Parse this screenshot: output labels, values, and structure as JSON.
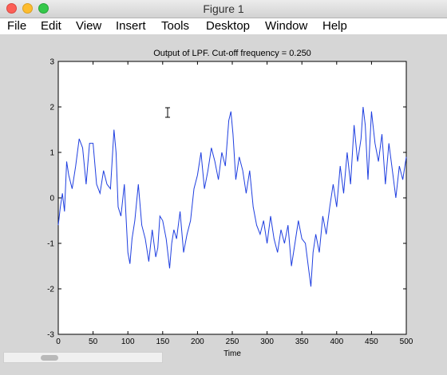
{
  "window": {
    "title": "Figure 1"
  },
  "menu": {
    "items": [
      "File",
      "Edit",
      "View",
      "Insert",
      "Tools",
      "Desktop",
      "Window",
      "Help"
    ]
  },
  "colors": {
    "line": "#1f3fe0",
    "axes_bg": "#ffffff",
    "figure_bg": "#d6d6d6"
  },
  "chart_data": {
    "type": "line",
    "title": "Output of LPF. Cut-off frequency = 0.250",
    "xlabel": "Time",
    "ylabel": "",
    "xlim": [
      0,
      500
    ],
    "ylim": [
      -3,
      3
    ],
    "xticks": [
      0,
      50,
      100,
      150,
      200,
      250,
      300,
      350,
      400,
      450,
      500
    ],
    "yticks": [
      -3,
      -2,
      -1,
      0,
      1,
      2,
      3
    ],
    "grid": false,
    "series": [
      {
        "x": [
          0,
          3,
          6,
          9,
          12,
          15,
          20,
          25,
          30,
          35,
          40,
          45,
          50,
          55,
          60,
          65,
          70,
          75,
          80,
          83,
          86,
          90,
          95,
          100,
          103,
          106,
          110,
          115,
          120,
          125,
          130,
          135,
          140,
          143,
          146,
          150,
          155,
          160,
          163,
          166,
          170,
          175,
          180,
          185,
          190,
          195,
          200,
          205,
          210,
          215,
          220,
          225,
          230,
          235,
          240,
          245,
          248,
          251,
          255,
          260,
          265,
          270,
          275,
          280,
          285,
          290,
          295,
          300,
          305,
          310,
          315,
          320,
          325,
          330,
          335,
          340,
          345,
          350,
          355,
          360,
          363,
          366,
          370,
          375,
          380,
          385,
          390,
          395,
          400,
          405,
          410,
          415,
          420,
          425,
          430,
          435,
          438,
          441,
          445,
          450,
          455,
          460,
          465,
          470,
          475,
          480,
          485,
          490,
          495,
          500
        ],
        "y": [
          -0.6,
          -0.2,
          0.1,
          -0.3,
          0.8,
          0.5,
          0.2,
          0.7,
          1.3,
          1.1,
          0.3,
          1.2,
          1.2,
          0.3,
          0.1,
          0.6,
          0.3,
          0.2,
          1.5,
          1.0,
          -0.2,
          -0.4,
          0.3,
          -1.2,
          -1.45,
          -0.9,
          -0.5,
          0.3,
          -0.6,
          -0.9,
          -1.4,
          -0.7,
          -1.3,
          -1.1,
          -0.4,
          -0.5,
          -0.9,
          -1.55,
          -1.0,
          -0.7,
          -0.9,
          -0.3,
          -1.2,
          -0.8,
          -0.5,
          0.2,
          0.5,
          1.0,
          0.2,
          0.6,
          1.1,
          0.8,
          0.4,
          1.0,
          0.7,
          1.7,
          1.9,
          1.4,
          0.4,
          0.9,
          0.6,
          0.1,
          0.6,
          -0.2,
          -0.6,
          -0.8,
          -0.5,
          -1.0,
          -0.4,
          -0.9,
          -1.2,
          -0.7,
          -1.0,
          -0.6,
          -1.5,
          -1.0,
          -0.5,
          -0.9,
          -1.0,
          -1.6,
          -1.95,
          -1.2,
          -0.8,
          -1.2,
          -0.4,
          -0.8,
          -0.2,
          0.3,
          -0.2,
          0.7,
          0.1,
          1.0,
          0.3,
          1.6,
          0.8,
          1.3,
          2.0,
          1.6,
          0.4,
          1.9,
          1.2,
          0.8,
          1.4,
          0.3,
          1.2,
          0.6,
          0.0,
          0.7,
          0.4,
          0.9
        ]
      }
    ]
  }
}
